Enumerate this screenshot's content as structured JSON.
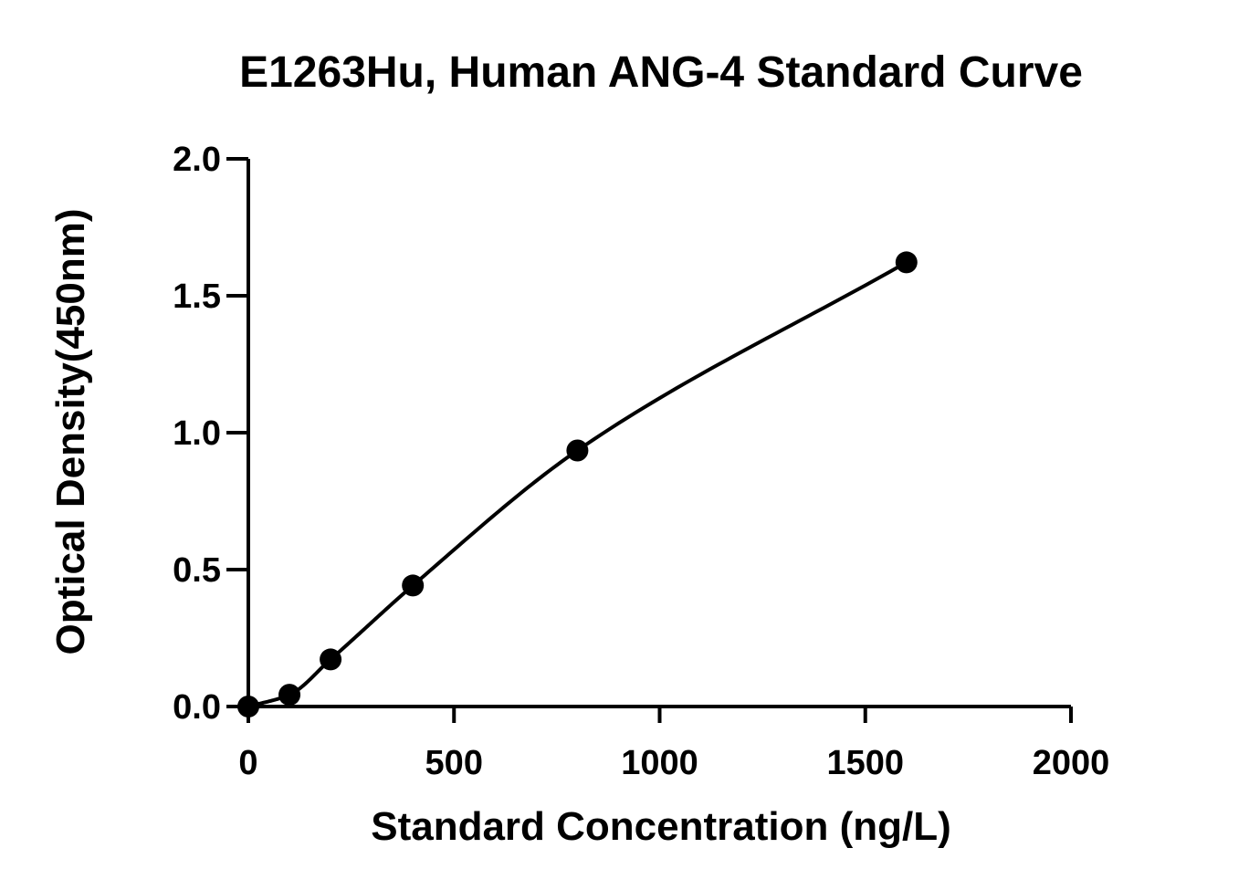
{
  "chart_data": {
    "type": "scatter",
    "title": "E1263Hu, Human ANG-4 Standard Curve",
    "xlabel": "Standard Concentration (ng/L)",
    "ylabel": "Optical Density(450nm)",
    "xlim": [
      0,
      2000
    ],
    "ylim": [
      0,
      2.0
    ],
    "xticks": [
      "0",
      "500",
      "1000",
      "1500",
      "2000"
    ],
    "yticks": [
      "0.0",
      "0.5",
      "1.0",
      "1.5",
      "2.0"
    ],
    "grid": false,
    "legend": "none",
    "fit_curve": true,
    "x": [
      0,
      100,
      200,
      400,
      800,
      1600
    ],
    "y": [
      0.0,
      0.043,
      0.172,
      0.442,
      0.935,
      1.622
    ],
    "colors": {
      "points": "#000000",
      "curve": "#000000"
    }
  }
}
